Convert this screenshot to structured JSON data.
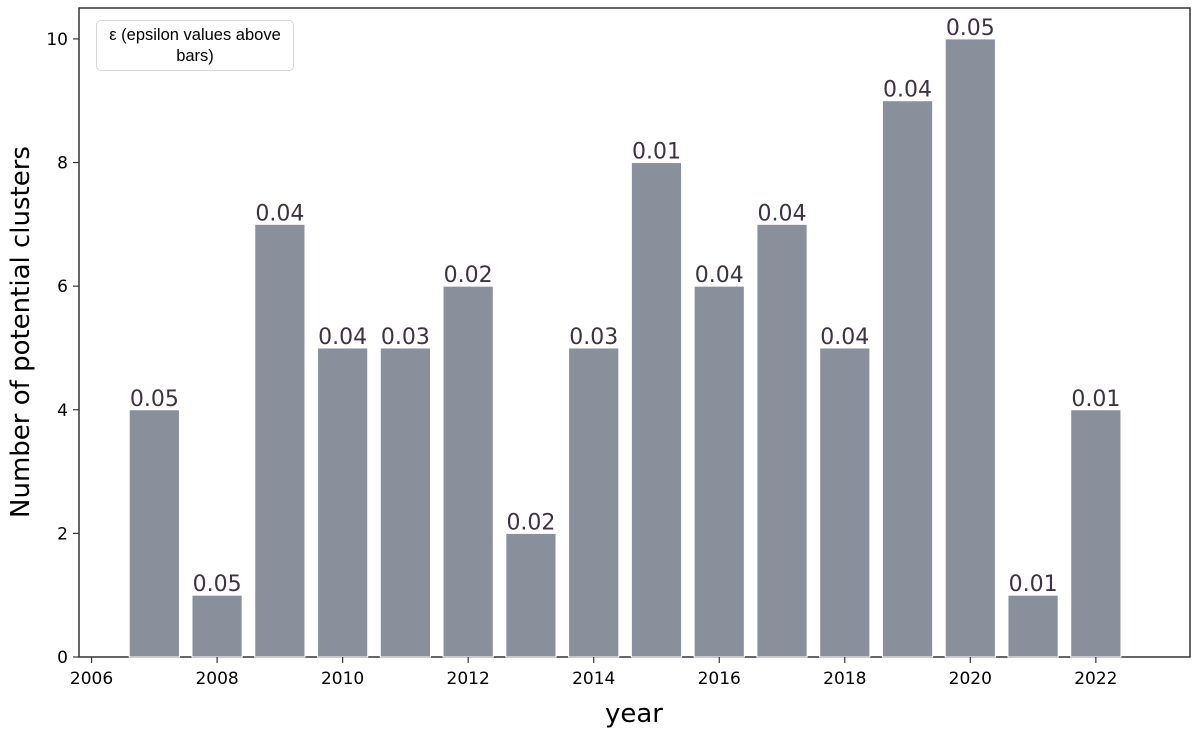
{
  "chart_data": {
    "type": "bar",
    "categories": [
      2007,
      2008,
      2009,
      2010,
      2011,
      2012,
      2013,
      2014,
      2015,
      2016,
      2017,
      2018,
      2019,
      2020,
      2021,
      2022
    ],
    "values": [
      4,
      1,
      7,
      5,
      5,
      6,
      2,
      5,
      8,
      6,
      7,
      5,
      9,
      10,
      1,
      4
    ],
    "bar_labels": [
      "0.05",
      "0.05",
      "0.04",
      "0.04",
      "0.03",
      "0.02",
      "0.02",
      "0.03",
      "0.01",
      "0.04",
      "0.04",
      "0.04",
      "0.04",
      "0.05",
      "0.01",
      "0.01"
    ],
    "title": "",
    "xlabel": "year",
    "ylabel": "Number of potential clusters",
    "xlim": [
      2005.8,
      2023.5
    ],
    "ylim": [
      0,
      10.5
    ],
    "xticks": [
      2006,
      2008,
      2010,
      2012,
      2014,
      2016,
      2018,
      2020,
      2022
    ],
    "yticks": [
      0,
      2,
      4,
      6,
      8,
      10
    ],
    "bar_width_years": 0.8,
    "bar_color": "#8a8f9c",
    "legend": {
      "text": "ε (epsilon values above bars)",
      "position": "top-left"
    }
  }
}
